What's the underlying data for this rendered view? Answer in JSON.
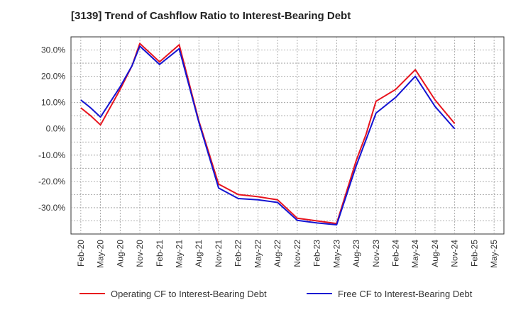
{
  "chart_data": {
    "type": "line",
    "title": "[3139]  Trend of Cashflow Ratio to Interest-Bearing Debt",
    "xlabel": "",
    "ylabel": "",
    "ylim": [
      -40,
      35
    ],
    "yticks": [
      30,
      20,
      10,
      0,
      -10,
      -20,
      -30
    ],
    "ytick_labels": [
      "30.0%",
      "20.0%",
      "10.0%",
      "0.0%",
      "-10.0%",
      "-20.0%",
      "-30.0%"
    ],
    "x_labels": [
      "Feb-20",
      "May-20",
      "Aug-20",
      "Nov-20",
      "Feb-21",
      "May-21",
      "Aug-21",
      "Nov-21",
      "Feb-22",
      "May-22",
      "Aug-22",
      "Nov-22",
      "Feb-23",
      "May-23",
      "Aug-23",
      "Nov-23",
      "Feb-24",
      "May-24",
      "Aug-24",
      "Nov-24",
      "Feb-25",
      "May-25"
    ],
    "grid": true,
    "legend_position": "bottom",
    "series": [
      {
        "name": "Operating CF to Interest-Bearing Debt",
        "color": "#e8141e",
        "x": [
          0,
          0.5,
          1,
          2,
          2.6,
          3,
          4,
          5,
          6,
          7,
          8,
          9,
          10,
          11,
          12,
          13,
          14,
          14.5,
          15,
          16,
          17,
          18,
          19
        ],
        "values": [
          8.0,
          5.0,
          1.5,
          15.0,
          24.0,
          32.5,
          25.5,
          32.0,
          3.0,
          -21.0,
          -25.0,
          -25.8,
          -27.0,
          -34.0,
          -35.0,
          -36.0,
          -12.0,
          -2.0,
          10.5,
          15.0,
          22.5,
          11.0,
          2.0
        ]
      },
      {
        "name": "Free CF to Interest-Bearing Debt",
        "color": "#1414d2",
        "x": [
          0,
          0.5,
          1,
          2,
          2.6,
          3,
          4,
          5,
          6,
          7,
          8,
          9,
          10,
          11,
          12,
          13,
          14,
          14.5,
          15,
          16,
          17,
          18,
          19
        ],
        "values": [
          11.0,
          8.0,
          4.5,
          16.0,
          24.0,
          31.5,
          24.5,
          30.5,
          2.5,
          -22.5,
          -26.5,
          -27.0,
          -28.0,
          -34.8,
          -35.8,
          -36.5,
          -14.0,
          -4.0,
          6.0,
          12.0,
          20.0,
          8.5,
          0.0
        ]
      }
    ]
  }
}
